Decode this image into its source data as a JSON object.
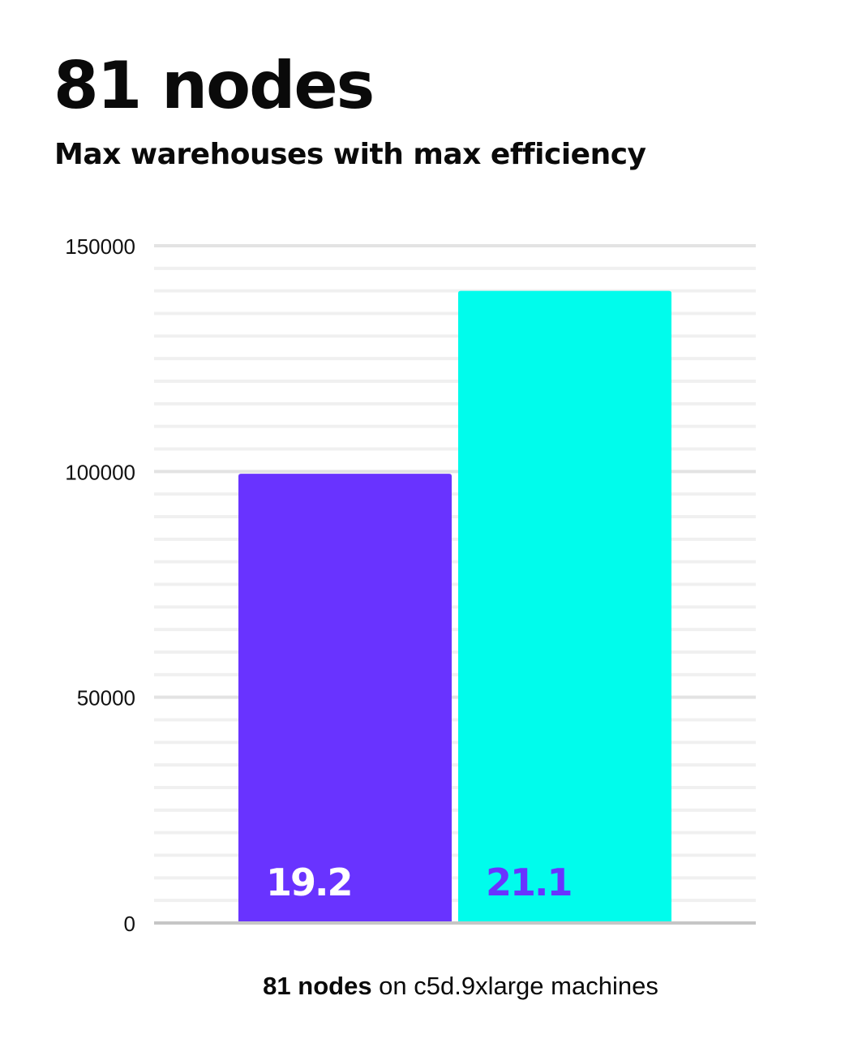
{
  "header": {
    "title": "81 nodes",
    "subtitle": "Max warehouses with max efficiency"
  },
  "caption": {
    "bold": "81 nodes",
    "rest": " on c5d.9xlarge machines"
  },
  "chart_data": {
    "type": "bar",
    "categories": [
      "",
      ""
    ],
    "values": [
      99500,
      140000
    ],
    "data_labels": [
      "19.2",
      "21.1"
    ],
    "colors": [
      "#6933ff",
      "#00fcec"
    ],
    "label_colors": [
      "#ffffff",
      "#6933ff"
    ],
    "ylim": [
      0,
      150000
    ],
    "yticks": [
      0,
      50000,
      100000,
      150000
    ],
    "ytick_labels": [
      "0",
      "50000",
      "100000",
      "150000"
    ],
    "minor_grid_step": 5000,
    "grid": true,
    "xlabel": "",
    "ylabel": ""
  }
}
